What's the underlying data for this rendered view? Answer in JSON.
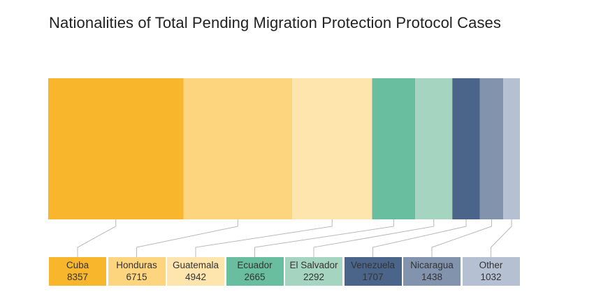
{
  "chart_data": {
    "type": "bar",
    "subtype": "stacked-100-percent-horizontal",
    "title": "Nationalities of Total Pending Migration Protection Protocol Cases",
    "categories": [
      "Cuba",
      "Honduras",
      "Guatemala",
      "Ecuador",
      "El Salvador",
      "Venezuela",
      "Nicaragua",
      "Other"
    ],
    "values": [
      8357,
      6715,
      4942,
      2665,
      2292,
      1707,
      1438,
      1032
    ],
    "colors": [
      "#F8B62D",
      "#FDD57E",
      "#FEE5AE",
      "#69BE9F",
      "#A5D5C1",
      "#4A6589",
      "#8293AE",
      "#B5C0D2"
    ],
    "label_text_colors": [
      "#333333",
      "#333333",
      "#333333",
      "#333333",
      "#333333",
      "#333333",
      "#333333",
      "#333333"
    ],
    "grid": false,
    "legend": "bottom"
  }
}
